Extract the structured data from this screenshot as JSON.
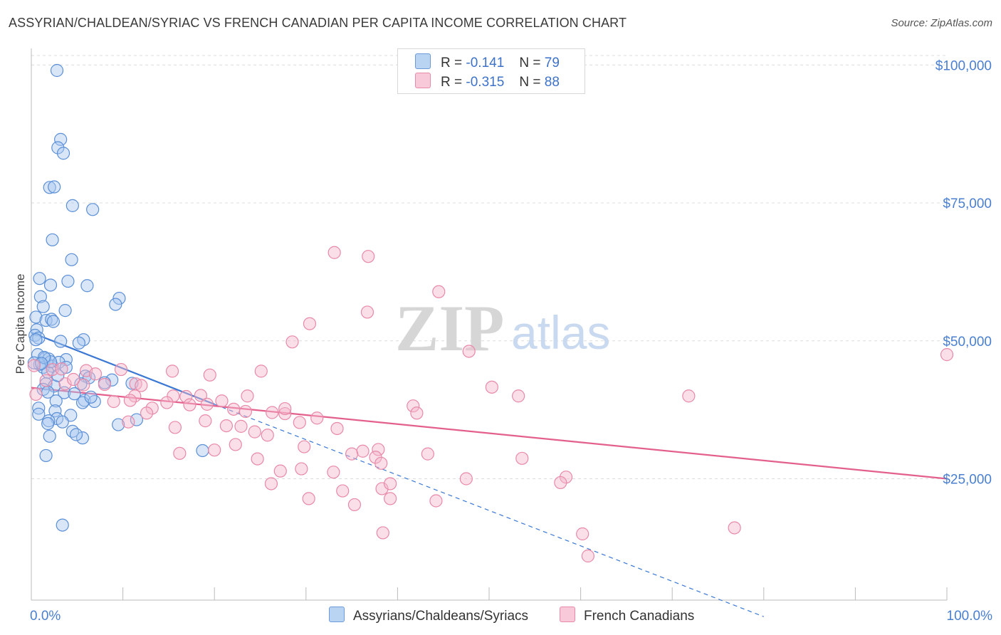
{
  "header": {
    "title": "ASSYRIAN/CHALDEAN/SYRIAC VS FRENCH CANADIAN PER CAPITA INCOME CORRELATION CHART",
    "source": "Source: ZipAtlas.com"
  },
  "watermark": {
    "zip": "ZIP",
    "atlas": "atlas"
  },
  "colors": {
    "blue_fill": "#a8c8f0",
    "blue_stroke": "#5b8fd6",
    "blue_line": "#3a78d4",
    "pink_fill": "#f5b8cc",
    "pink_stroke": "#e889a8",
    "pink_line": "#e4608c",
    "tick_text": "#4a7fd0",
    "grid": "#dcdcdc"
  },
  "legend": {
    "rows": [
      {
        "r_label": "R =",
        "r_value": "-0.141",
        "n_label": "N =",
        "n_value": "79",
        "series": "blue"
      },
      {
        "r_label": "R =",
        "r_value": "-0.315",
        "n_label": "N =",
        "n_value": "88",
        "series": "pink"
      }
    ]
  },
  "bottom_legend": [
    {
      "label": "Assyrians/Chaldeans/Syriacs",
      "series": "blue"
    },
    {
      "label": "French Canadians",
      "series": "pink"
    }
  ],
  "chart_data": {
    "type": "scatter",
    "title": "ASSYRIAN/CHALDEAN/SYRIAC VS FRENCH CANADIAN PER CAPITA INCOME CORRELATION CHART",
    "xlabel": "",
    "ylabel": "Per Capita Income",
    "xlim": [
      0,
      100
    ],
    "ylim": [
      3000,
      103000
    ],
    "x_tick_labels": [
      {
        "value": 0,
        "label": "0.0%"
      },
      {
        "value": 100,
        "label": "100.0%"
      }
    ],
    "x_minor_ticks": [
      10,
      20,
      30,
      40,
      50,
      60,
      70,
      80,
      90,
      100
    ],
    "y_ticks": [
      {
        "value": 25000,
        "label": "$25,000"
      },
      {
        "value": 50000,
        "label": "$50,000"
      },
      {
        "value": 75000,
        "label": "$75,000"
      },
      {
        "value": 100000,
        "label": "$100,000"
      }
    ],
    "grid": true,
    "legend_position": "top-center",
    "series": [
      {
        "name": "Assyrians/Chaldeans/Syriacs",
        "color": "blue",
        "trend": {
          "x": [
            0,
            20
          ],
          "y": [
            51500,
            38500
          ],
          "solid_until": 20
        },
        "trend_dashed": {
          "x": [
            20,
            80
          ],
          "y": [
            38500,
            0
          ]
        },
        "points": [
          [
            2.8,
            99000
          ],
          [
            3.2,
            86500
          ],
          [
            2.9,
            85000
          ],
          [
            3.5,
            84000
          ],
          [
            2.0,
            77800
          ],
          [
            2.5,
            77900
          ],
          [
            4.5,
            74500
          ],
          [
            6.7,
            73800
          ],
          [
            2.3,
            68300
          ],
          [
            4.4,
            64700
          ],
          [
            0.9,
            61300
          ],
          [
            4.0,
            60800
          ],
          [
            6.1,
            60000
          ],
          [
            2.1,
            60100
          ],
          [
            1.0,
            58000
          ],
          [
            9.6,
            57700
          ],
          [
            9.2,
            56600
          ],
          [
            1.3,
            56200
          ],
          [
            3.7,
            55500
          ],
          [
            0.5,
            54300
          ],
          [
            1.6,
            53700
          ],
          [
            2.2,
            53900
          ],
          [
            2.4,
            53500
          ],
          [
            0.6,
            52000
          ],
          [
            0.4,
            51000
          ],
          [
            0.8,
            50500
          ],
          [
            5.7,
            50200
          ],
          [
            5.2,
            49600
          ],
          [
            3.2,
            49900
          ],
          [
            0.7,
            47500
          ],
          [
            1.5,
            46800
          ],
          [
            1.9,
            46700
          ],
          [
            3.8,
            46600
          ],
          [
            0.9,
            45700
          ],
          [
            1.3,
            45200
          ],
          [
            2.3,
            45400
          ],
          [
            0.3,
            46000
          ],
          [
            1.8,
            44300
          ],
          [
            3.0,
            46100
          ],
          [
            5.9,
            43600
          ],
          [
            6.3,
            43300
          ],
          [
            8.8,
            42900
          ],
          [
            5.4,
            42200
          ],
          [
            11.0,
            42300
          ],
          [
            1.6,
            42200
          ],
          [
            2.5,
            41800
          ],
          [
            1.3,
            41200
          ],
          [
            3.6,
            40600
          ],
          [
            1.8,
            40700
          ],
          [
            2.7,
            39100
          ],
          [
            5.8,
            39200
          ],
          [
            5.6,
            38800
          ],
          [
            6.9,
            39000
          ],
          [
            0.8,
            37800
          ],
          [
            2.6,
            37300
          ],
          [
            0.8,
            36700
          ],
          [
            4.3,
            36500
          ],
          [
            2.8,
            35900
          ],
          [
            3.4,
            35300
          ],
          [
            1.9,
            35500
          ],
          [
            1.8,
            35000
          ],
          [
            9.5,
            34800
          ],
          [
            11.5,
            35700
          ],
          [
            4.5,
            33600
          ],
          [
            2.0,
            32700
          ],
          [
            5.6,
            32400
          ],
          [
            4.9,
            33000
          ],
          [
            18.7,
            30100
          ],
          [
            1.6,
            29200
          ],
          [
            3.4,
            16600
          ],
          [
            2.1,
            46200
          ],
          [
            1.4,
            47000
          ],
          [
            0.5,
            50200
          ],
          [
            3.8,
            45200
          ],
          [
            4.7,
            40400
          ],
          [
            8.0,
            42400
          ],
          [
            6.5,
            39800
          ],
          [
            2.9,
            43700
          ],
          [
            1.1,
            45900
          ]
        ]
      },
      {
        "name": "French Canadians",
        "color": "pink",
        "trend": {
          "x": [
            0,
            100
          ],
          "y": [
            41500,
            25000
          ]
        },
        "points": [
          [
            33.1,
            66000
          ],
          [
            36.8,
            65300
          ],
          [
            44.5,
            58900
          ],
          [
            36.7,
            55200
          ],
          [
            30.4,
            53100
          ],
          [
            28.5,
            49800
          ],
          [
            47.8,
            48100
          ],
          [
            100,
            47500
          ],
          [
            0.3,
            45500
          ],
          [
            2.3,
            44800
          ],
          [
            3.3,
            44900
          ],
          [
            6.0,
            44600
          ],
          [
            7.0,
            44000
          ],
          [
            9.8,
            44800
          ],
          [
            15.4,
            44500
          ],
          [
            19.5,
            43800
          ],
          [
            25.1,
            44500
          ],
          [
            1.6,
            42800
          ],
          [
            3.7,
            42200
          ],
          [
            5.7,
            42000
          ],
          [
            8.0,
            42100
          ],
          [
            11.4,
            42200
          ],
          [
            12.0,
            41900
          ],
          [
            15.5,
            40000
          ],
          [
            16.9,
            39900
          ],
          [
            18.5,
            40100
          ],
          [
            20.8,
            39100
          ],
          [
            23.6,
            40000
          ],
          [
            0.5,
            40300
          ],
          [
            9.0,
            39000
          ],
          [
            11.3,
            40000
          ],
          [
            13.2,
            37800
          ],
          [
            14.8,
            38800
          ],
          [
            17.3,
            38400
          ],
          [
            19.2,
            38500
          ],
          [
            22.1,
            37600
          ],
          [
            23.4,
            37200
          ],
          [
            26.3,
            37000
          ],
          [
            27.7,
            36800
          ],
          [
            31.2,
            36000
          ],
          [
            41.7,
            38200
          ],
          [
            42.1,
            36900
          ],
          [
            50.3,
            41600
          ],
          [
            53.2,
            40000
          ],
          [
            71.8,
            40000
          ],
          [
            10.6,
            35300
          ],
          [
            12.6,
            36900
          ],
          [
            15.7,
            34300
          ],
          [
            21.3,
            34600
          ],
          [
            22.9,
            34500
          ],
          [
            29.3,
            35200
          ],
          [
            33.4,
            34100
          ],
          [
            25.8,
            32900
          ],
          [
            36.2,
            30000
          ],
          [
            37.9,
            30300
          ],
          [
            20.0,
            30200
          ],
          [
            29.8,
            30800
          ],
          [
            37.6,
            28900
          ],
          [
            24.7,
            28600
          ],
          [
            16.2,
            29600
          ],
          [
            53.6,
            28700
          ],
          [
            33.0,
            26200
          ],
          [
            47.5,
            25000
          ],
          [
            58.4,
            25300
          ],
          [
            57.8,
            24300
          ],
          [
            26.2,
            24100
          ],
          [
            35.3,
            20300
          ],
          [
            38.3,
            23200
          ],
          [
            38.2,
            27800
          ],
          [
            27.2,
            26400
          ],
          [
            39.2,
            21400
          ],
          [
            30.3,
            21400
          ],
          [
            39.2,
            24100
          ],
          [
            44.2,
            21000
          ],
          [
            38.4,
            15200
          ],
          [
            60.2,
            15000
          ],
          [
            60.8,
            11000
          ],
          [
            76.8,
            16100
          ],
          [
            10.8,
            39200
          ],
          [
            22.3,
            31200
          ],
          [
            27.7,
            37700
          ],
          [
            29.5,
            26800
          ],
          [
            35.0,
            29500
          ],
          [
            43.3,
            29500
          ],
          [
            34.0,
            22800
          ],
          [
            19.0,
            35500
          ],
          [
            24.4,
            33500
          ],
          [
            4.6,
            43000
          ]
        ]
      }
    ]
  }
}
